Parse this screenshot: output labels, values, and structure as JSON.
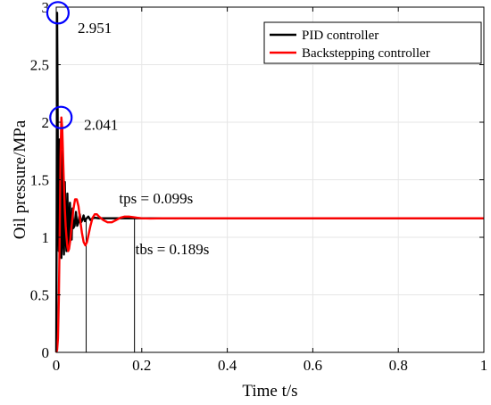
{
  "chart_data": {
    "type": "line",
    "xlabel": "Time t/s",
    "ylabel": "Oil pressure/MPa",
    "xlim": [
      0,
      1
    ],
    "ylim": [
      0,
      3
    ],
    "xticks": [
      0,
      0.2,
      0.4,
      0.6,
      0.8,
      1
    ],
    "xtick_labels": [
      "0",
      "0.2",
      "0.4",
      "0.6",
      "0.8",
      "1"
    ],
    "yticks": [
      0,
      0.5,
      1,
      1.5,
      2,
      2.5,
      3
    ],
    "ytick_labels": [
      "0",
      "0.5",
      "1",
      "1.5",
      "2",
      "2.5",
      "3"
    ],
    "grid": true,
    "legend_position": "top-right",
    "series": [
      {
        "name": "PID controller",
        "color": "#000000",
        "x": [
          0,
          0.001,
          0.002,
          0.003,
          0.004,
          0.006,
          0.008,
          0.01,
          0.012,
          0.014,
          0.016,
          0.018,
          0.02,
          0.022,
          0.024,
          0.026,
          0.028,
          0.03,
          0.032,
          0.034,
          0.036,
          0.038,
          0.04,
          0.043,
          0.046,
          0.049,
          0.052,
          0.055,
          0.058,
          0.061,
          0.064,
          0.067,
          0.07,
          0.075,
          0.08,
          0.085,
          0.09,
          0.099,
          0.15,
          0.2,
          0.3,
          0.4,
          0.5,
          0.6,
          0.7,
          0.8,
          0.9,
          1.0
        ],
        "y": [
          0,
          1.2,
          2.951,
          2.3,
          1.4,
          0.88,
          1.85,
          0.95,
          0.82,
          1.75,
          1.0,
          0.85,
          1.48,
          1.0,
          0.88,
          1.38,
          1.05,
          0.93,
          1.3,
          1.05,
          0.98,
          1.25,
          1.08,
          1.1,
          1.22,
          1.1,
          1.13,
          1.2,
          1.13,
          1.15,
          1.19,
          1.14,
          1.16,
          1.18,
          1.15,
          1.165,
          1.17,
          1.165,
          1.165,
          1.165,
          1.165,
          1.165,
          1.165,
          1.165,
          1.165,
          1.165,
          1.165,
          1.165
        ]
      },
      {
        "name": "Backstepping controller",
        "color": "#ff0000",
        "x": [
          0,
          0.002,
          0.004,
          0.006,
          0.008,
          0.01,
          0.012,
          0.014,
          0.016,
          0.018,
          0.02,
          0.022,
          0.024,
          0.026,
          0.028,
          0.03,
          0.033,
          0.036,
          0.04,
          0.044,
          0.048,
          0.052,
          0.056,
          0.06,
          0.064,
          0.068,
          0.072,
          0.076,
          0.08,
          0.085,
          0.09,
          0.095,
          0.1,
          0.11,
          0.12,
          0.13,
          0.14,
          0.15,
          0.16,
          0.17,
          0.18,
          0.189,
          0.2,
          0.22,
          0.25,
          0.3,
          0.4,
          0.5,
          0.6,
          0.7,
          0.8,
          0.9,
          1.0
        ],
        "y": [
          0,
          0.02,
          0.12,
          0.45,
          1.0,
          1.7,
          2.041,
          1.95,
          1.7,
          1.45,
          1.25,
          1.1,
          1.0,
          0.92,
          0.88,
          0.9,
          0.98,
          1.1,
          1.24,
          1.33,
          1.33,
          1.27,
          1.15,
          1.04,
          0.96,
          0.93,
          0.96,
          1.03,
          1.1,
          1.17,
          1.2,
          1.2,
          1.18,
          1.15,
          1.13,
          1.13,
          1.15,
          1.17,
          1.18,
          1.18,
          1.175,
          1.17,
          1.165,
          1.163,
          1.165,
          1.165,
          1.165,
          1.165,
          1.165,
          1.165,
          1.165,
          1.165,
          1.165
        ]
      }
    ],
    "annotations": [
      {
        "text": "2.951",
        "circle_x": 0.004,
        "circle_y": 2.951,
        "text_x": 0.05,
        "text_y": 2.82
      },
      {
        "text": "2.041",
        "circle_x": 0.011,
        "circle_y": 2.041,
        "text_x": 0.065,
        "text_y": 1.98
      },
      {
        "text": "tps = 0.099s",
        "text_x": 0.147,
        "text_y": 1.34
      },
      {
        "text": "tbs = 0.189s",
        "text_x": 0.185,
        "text_y": 0.9
      }
    ],
    "settle_lines": [
      {
        "x": 0.07,
        "y": 1.165
      },
      {
        "x": 0.183,
        "y": 1.165
      }
    ]
  }
}
